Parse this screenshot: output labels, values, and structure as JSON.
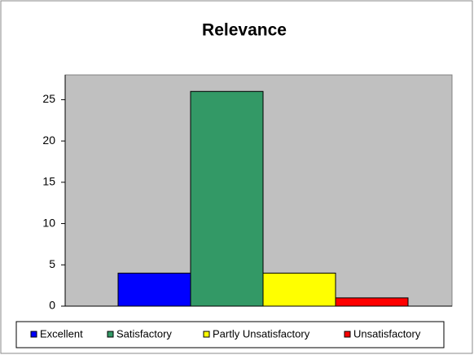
{
  "chart_data": {
    "type": "bar",
    "title": "Relevance",
    "series": [
      {
        "name": "Excellent",
        "color": "#0000ff",
        "values": [
          4
        ]
      },
      {
        "name": "Satisfactory",
        "color": "#339966",
        "values": [
          26
        ]
      },
      {
        "name": "Partly Unsatisfactory",
        "color": "#ffff00",
        "values": [
          4
        ]
      },
      {
        "name": "Unsatisfactory",
        "color": "#ff0000",
        "values": [
          1
        ]
      }
    ],
    "ylim": [
      0,
      28
    ],
    "yticks": [
      0,
      5,
      10,
      15,
      20,
      25
    ],
    "grid": false,
    "legend": "bottom"
  }
}
